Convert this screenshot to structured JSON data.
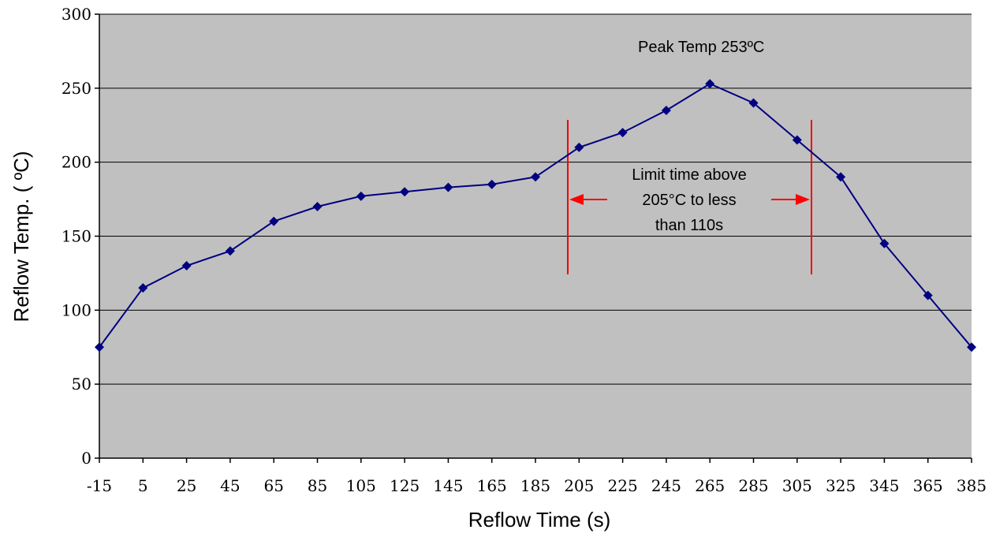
{
  "chart_data": {
    "type": "line",
    "xlabel": "Reflow Time (s)",
    "ylabel": "Reflow Temp. ( ºC)",
    "ylim": [
      0,
      300
    ],
    "yticks": [
      0,
      50,
      100,
      150,
      200,
      250,
      300
    ],
    "categories": [
      "-15",
      "5",
      "25",
      "45",
      "65",
      "85",
      "105",
      "125",
      "145",
      "165",
      "185",
      "205",
      "225",
      "245",
      "265",
      "285",
      "305",
      "325",
      "345",
      "365",
      "385"
    ],
    "series": [
      {
        "values": [
          75,
          115,
          130,
          140,
          160,
          170,
          177,
          180,
          183,
          185,
          190,
          210,
          220,
          235,
          253,
          240,
          215,
          190,
          145,
          110,
          75
        ]
      }
    ],
    "grid": true,
    "legend": "none",
    "annotations": {
      "peak": "Peak Temp 253ºC",
      "limit_lines": [
        "Limit time above",
        "205°C to less",
        "than 110s"
      ]
    },
    "colors": {
      "plot_background": "#c0c0c0",
      "line": "#000080",
      "marker": "#000080",
      "limit": "#ff0000",
      "grid": "#000000"
    }
  }
}
